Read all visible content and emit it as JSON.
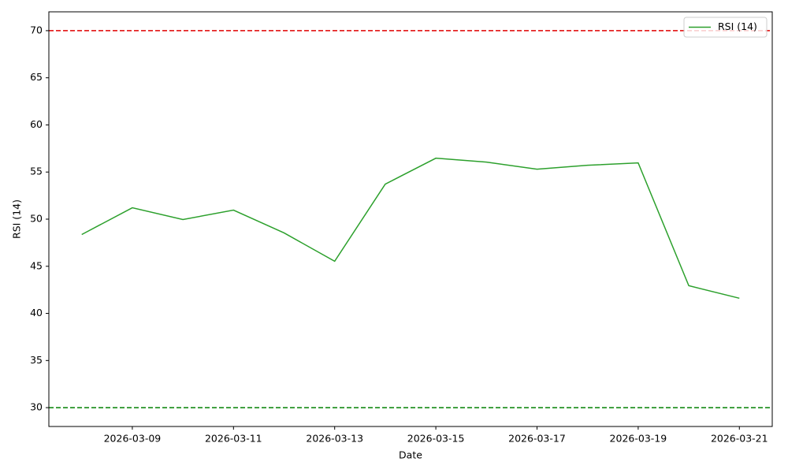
{
  "chart_data": {
    "type": "line",
    "x": [
      "2026-03-08",
      "2026-03-09",
      "2026-03-10",
      "2026-03-11",
      "2026-03-12",
      "2026-03-13",
      "2026-03-14",
      "2026-03-15",
      "2026-03-16",
      "2026-03-17",
      "2026-03-18",
      "2026-03-19",
      "2026-03-20",
      "2026-03-21"
    ],
    "series": [
      {
        "name": "RSI (14)",
        "color": "#2ca02c",
        "values": [
          48.37,
          51.21,
          49.96,
          50.96,
          48.54,
          45.53,
          53.72,
          56.47,
          56.05,
          55.3,
          55.72,
          55.97,
          42.94,
          41.61
        ]
      }
    ],
    "xticks": [
      "2026-03-09",
      "2026-03-11",
      "2026-03-13",
      "2026-03-15",
      "2026-03-17",
      "2026-03-19",
      "2026-03-21"
    ],
    "ylim": [
      28,
      72
    ],
    "yticks": [
      30,
      35,
      40,
      45,
      50,
      55,
      60,
      65,
      70
    ],
    "hlines": [
      {
        "value": 70,
        "color": "#e00000"
      },
      {
        "value": 30,
        "color": "#008000"
      }
    ],
    "xlabel": "Date",
    "ylabel": "RSI (14)",
    "legend": "upper-right",
    "grid": false
  }
}
